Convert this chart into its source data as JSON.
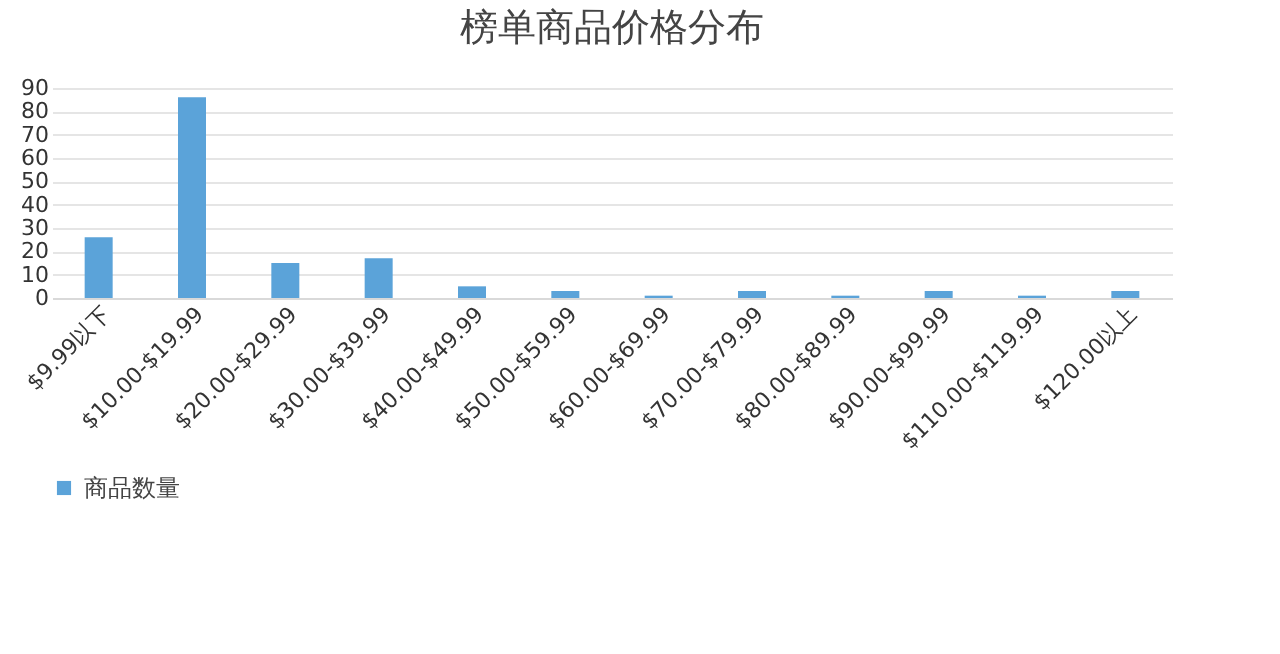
{
  "chart_data": {
    "type": "bar",
    "title": "榜单商品价格分布",
    "categories": [
      "$9.99以下",
      "$10.00-$19.99",
      "$20.00-$29.99",
      "$30.00-$39.99",
      "$40.00-$49.99",
      "$50.00-$59.99",
      "$60.00-$69.99",
      "$70.00-$79.99",
      "$80.00-$89.99",
      "$90.00-$99.99",
      "$110.00-$119.99",
      "$120.00以上"
    ],
    "series": [
      {
        "name": "商品数量",
        "color": "#5ba3d9",
        "values": [
          26,
          86,
          15,
          17,
          5,
          3,
          1,
          3,
          1,
          3,
          1,
          3
        ]
      }
    ],
    "ylim": [
      0,
      90
    ],
    "yticks": [
      0,
      10,
      20,
      30,
      40,
      50,
      60,
      70,
      80,
      90
    ],
    "grid": "y",
    "legend": "bottom"
  }
}
